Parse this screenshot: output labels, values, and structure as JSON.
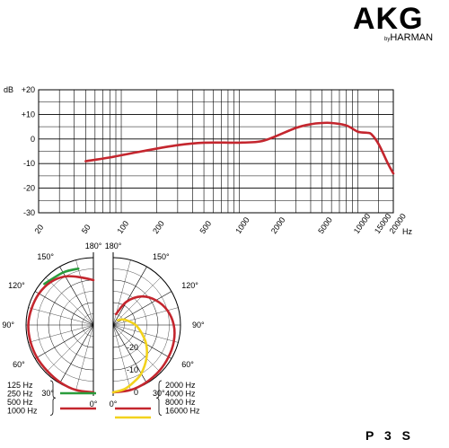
{
  "brand": {
    "name": "AKG",
    "by": "by",
    "parent": "HARMAN"
  },
  "model": "P 3 S",
  "colors": {
    "response": "#c4262e",
    "green": "#2a9c3c",
    "red": "#c4262e",
    "yellow": "#f2d21c",
    "grid": "#000000"
  },
  "chart_data": [
    {
      "type": "line",
      "title": "",
      "unit_label": "dB",
      "xlabel": "Hz",
      "x_scale": "log",
      "xlim": [
        20,
        20000
      ],
      "ylim": [
        -30,
        20
      ],
      "x_ticks": [
        "20",
        "50",
        "100",
        "200",
        "500",
        "1000",
        "2000",
        "5000",
        "10000",
        "15000",
        "20000"
      ],
      "x_tick_values": [
        20,
        50,
        100,
        200,
        500,
        1000,
        2000,
        5000,
        10000,
        15000,
        20000
      ],
      "y_ticks": [
        "+20",
        "+10",
        "0",
        "-10",
        "-20",
        "-30"
      ],
      "y_tick_values": [
        20,
        10,
        0,
        -10,
        -20,
        -30
      ],
      "grid": true,
      "series": [
        {
          "x": [
            50,
            80,
            150,
            300,
            500,
            1000,
            1500,
            2000,
            3000,
            4000,
            5000,
            6000,
            8000,
            10000,
            12000,
            13000,
            15000,
            18000,
            20000
          ],
          "y": [
            -9,
            -7.5,
            -5,
            -2.5,
            -1.5,
            -1.5,
            -1,
            1,
            4.5,
            6,
            6.5,
            6.5,
            5.5,
            3,
            2.5,
            2,
            -2,
            -10,
            -14
          ]
        }
      ]
    },
    {
      "type": "polar",
      "angle_ticks_left": [
        "180°",
        "150°",
        "120°",
        "90°",
        "60°",
        "30°",
        "0°"
      ],
      "angle_ticks_right": [
        "180°",
        "150°",
        "120°",
        "90°",
        "60°",
        "30°",
        "0°"
      ],
      "radial_ticks": [
        "-20",
        "-10",
        "0"
      ],
      "radial_tick_values": [
        -20,
        -10,
        0
      ],
      "rlim": [
        -30,
        0
      ],
      "legend_left": [
        "125 Hz",
        "250 Hz",
        "500 Hz",
        "1000 Hz"
      ],
      "legend_right": [
        "2000 Hz",
        "4000 Hz",
        "8000 Hz",
        "16000 Hz"
      ],
      "series": [
        {
          "side": "left",
          "color": "green",
          "angles": [
            130,
            150,
            165
          ],
          "db": [
            -1.5,
            -3,
            -4
          ]
        },
        {
          "side": "left",
          "color": "red",
          "angles": [
            0,
            15,
            30,
            45,
            60,
            75,
            90,
            105,
            120,
            135,
            150,
            165,
            180
          ],
          "db": [
            0,
            0,
            -0.5,
            -1,
            -1,
            -1,
            -1,
            -1.5,
            -2,
            -3,
            -5,
            -8,
            -10
          ]
        },
        {
          "side": "right",
          "color": "red",
          "angles": [
            0,
            15,
            30,
            45,
            60,
            75,
            90,
            105,
            120,
            135,
            150,
            165
          ],
          "db": [
            0,
            0,
            -0.5,
            -1,
            -1.5,
            -2,
            -3,
            -5,
            -8,
            -12,
            -18,
            -25
          ]
        },
        {
          "side": "right",
          "color": "yellow",
          "angles": [
            0,
            10,
            20,
            30,
            45,
            60,
            75,
            90,
            105,
            120,
            135
          ],
          "db": [
            0,
            -1,
            -3,
            -5,
            -9,
            -13,
            -17,
            -20,
            -23,
            -25,
            -27
          ]
        }
      ]
    }
  ]
}
